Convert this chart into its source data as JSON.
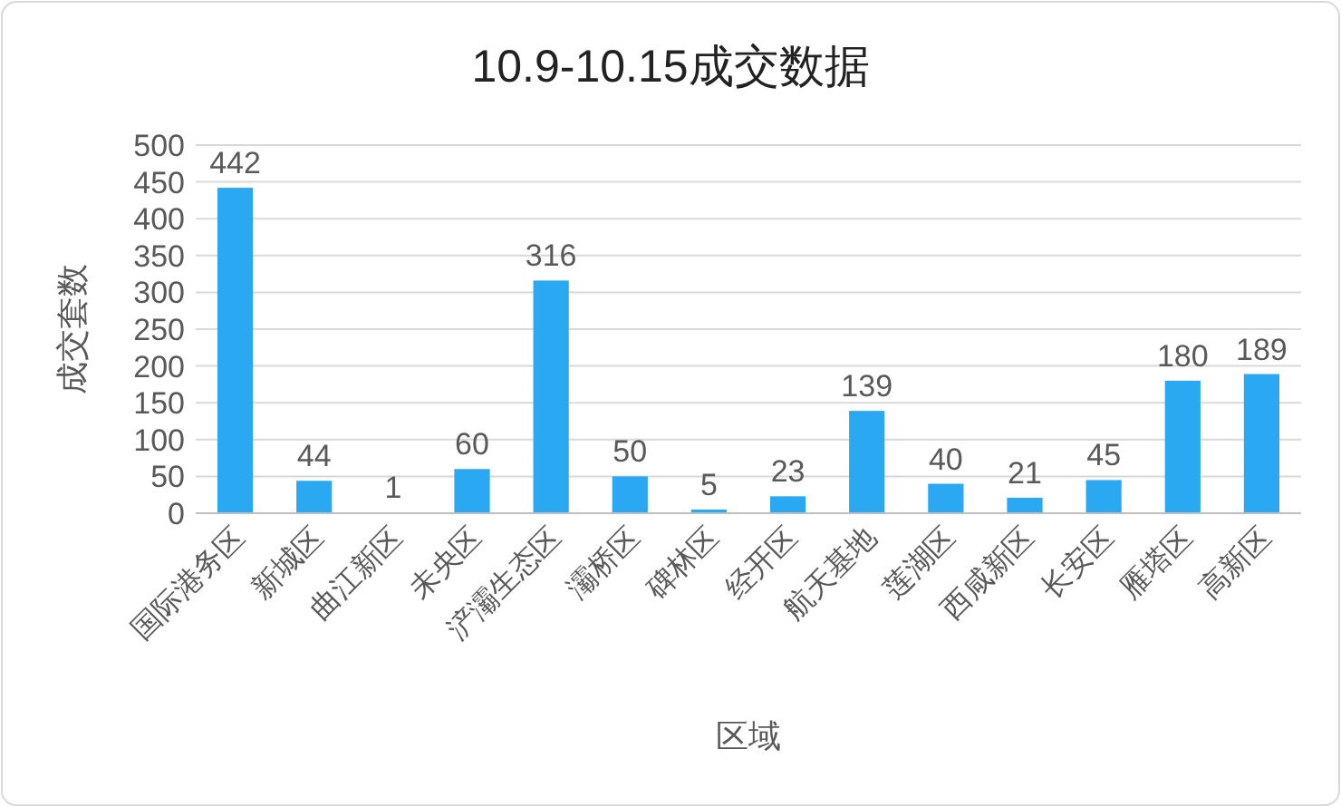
{
  "chart_data": {
    "type": "bar",
    "title": "10.9-10.15成交数据",
    "xlabel": "区域",
    "ylabel": "成交套数",
    "categories": [
      "国际港务区",
      "新城区",
      "曲江新区",
      "未央区",
      "浐灞生态区",
      "灞桥区",
      "碑林区",
      "经开区",
      "航天基地",
      "莲湖区",
      "西咸新区",
      "长安区",
      "雁塔区",
      "高新区"
    ],
    "values": [
      442,
      44,
      1,
      60,
      316,
      50,
      5,
      23,
      139,
      40,
      21,
      45,
      180,
      189
    ],
    "color": "#2aa9f2",
    "ylim": [
      0,
      500
    ],
    "yticks": [
      0,
      50,
      100,
      150,
      200,
      250,
      300,
      350,
      400,
      450,
      500
    ],
    "grid": "y",
    "data_labels": true
  }
}
